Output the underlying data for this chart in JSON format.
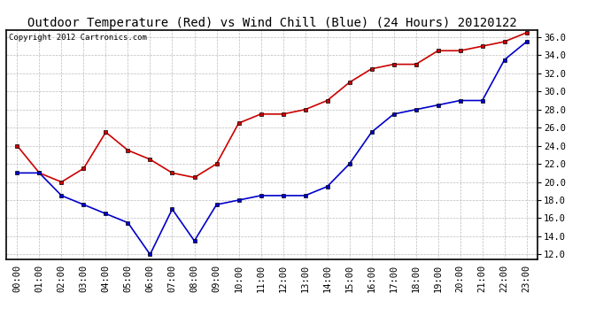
{
  "title": "Outdoor Temperature (Red) vs Wind Chill (Blue) (24 Hours) 20120122",
  "copyright_text": "Copyright 2012 Cartronics.com",
  "hours": [
    "00:00",
    "01:00",
    "02:00",
    "03:00",
    "04:00",
    "05:00",
    "06:00",
    "07:00",
    "08:00",
    "09:00",
    "10:00",
    "11:00",
    "12:00",
    "13:00",
    "14:00",
    "15:00",
    "16:00",
    "17:00",
    "18:00",
    "19:00",
    "20:00",
    "21:00",
    "22:00",
    "23:00"
  ],
  "red_temp": [
    24.0,
    21.0,
    20.0,
    21.5,
    25.5,
    23.5,
    22.5,
    21.0,
    20.5,
    22.0,
    26.5,
    27.5,
    27.5,
    28.0,
    29.0,
    31.0,
    32.5,
    33.0,
    33.0,
    34.5,
    34.5,
    35.0,
    35.5,
    36.5
  ],
  "blue_wind_chill": [
    21.0,
    21.0,
    18.5,
    17.5,
    16.5,
    15.5,
    12.0,
    17.0,
    13.5,
    17.5,
    18.0,
    18.5,
    18.5,
    18.5,
    19.5,
    22.0,
    25.5,
    27.5,
    28.0,
    28.5,
    29.0,
    29.0,
    33.5,
    35.5
  ],
  "ylim_min": 11.5,
  "ylim_max": 36.8,
  "yticks": [
    12.0,
    14.0,
    16.0,
    18.0,
    20.0,
    22.0,
    24.0,
    26.0,
    28.0,
    30.0,
    32.0,
    34.0,
    36.0
  ],
  "red_color": "#cc0000",
  "blue_color": "#0000cc",
  "bg_color": "#ffffff",
  "grid_color": "#aaaaaa",
  "title_fontsize": 10,
  "tick_fontsize": 7.5,
  "copyright_fontsize": 6.5
}
